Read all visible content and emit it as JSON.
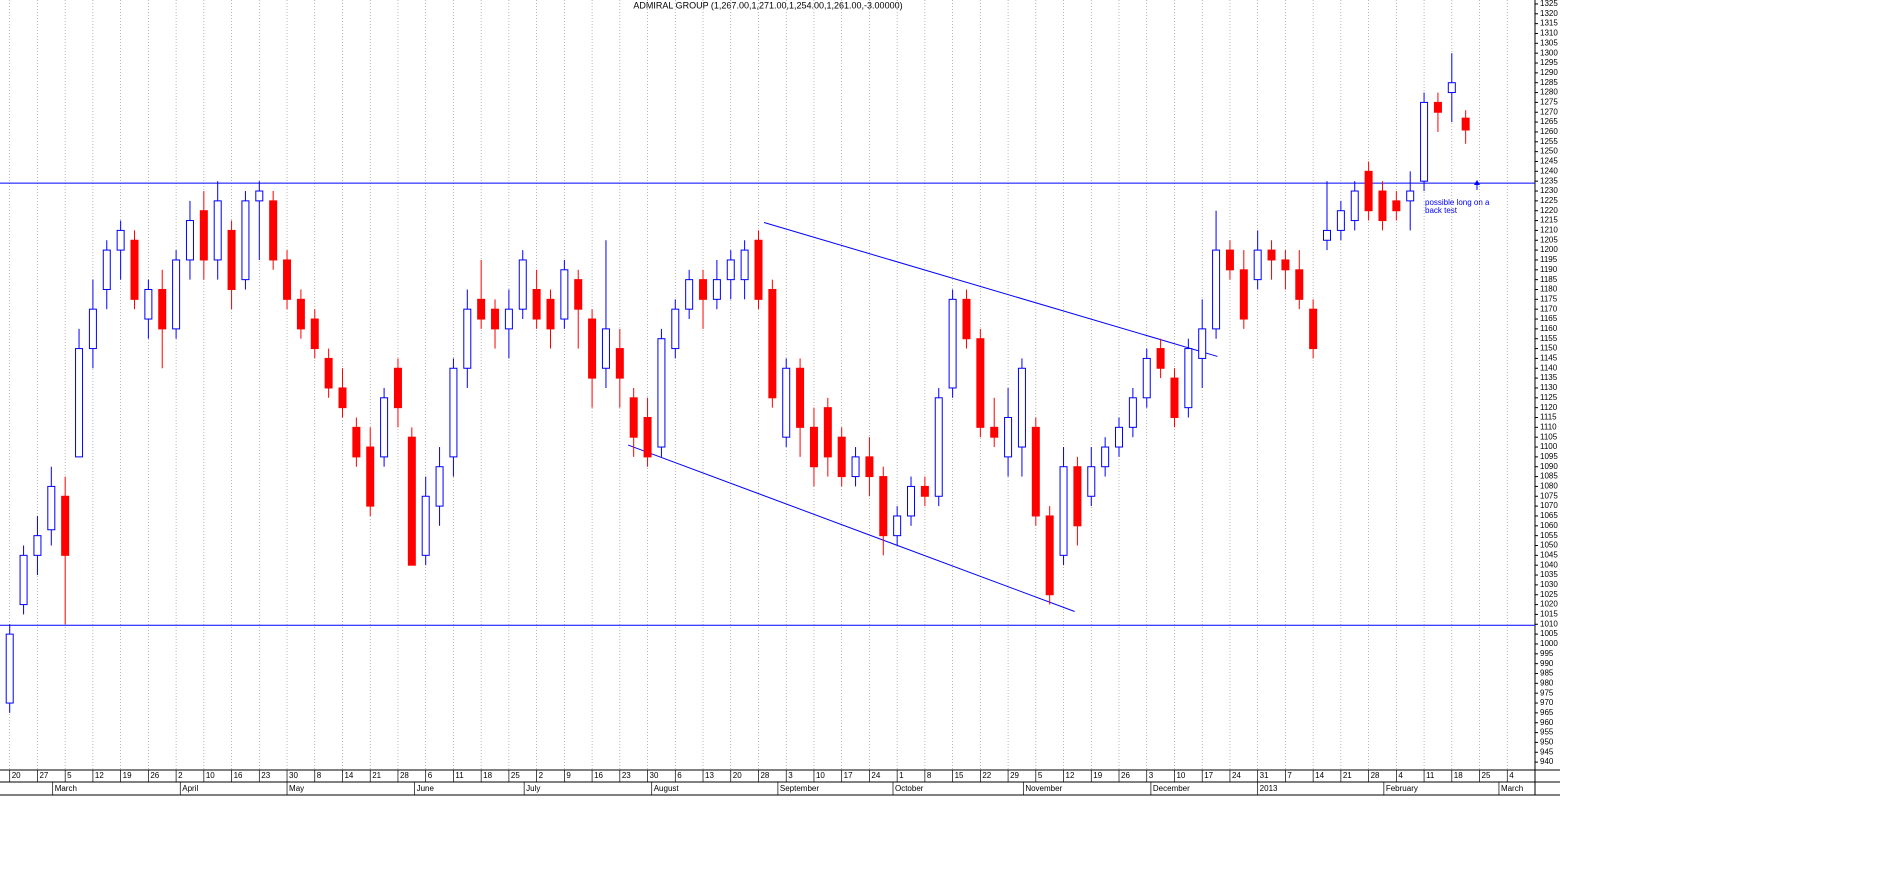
{
  "chart_data": {
    "type": "candlestick",
    "title": "ADMIRAL GROUP (1,267.00,1,271.00,1,254.00,1,261.00,-3.00000)",
    "up_color": "#0000ff",
    "down_color": "#ff0000",
    "line_color": "#0000ff",
    "open": [
      970,
      1020,
      1045,
      1058,
      1075,
      1095,
      1150,
      1180,
      1200,
      1205,
      1165,
      1180,
      1160,
      1195,
      1220,
      1195,
      1210,
      1185,
      1225,
      1225,
      1195,
      1175,
      1165,
      1145,
      1130,
      1110,
      1100,
      1095,
      1140,
      1105,
      1045,
      1070,
      1095,
      1140,
      1175,
      1170,
      1160,
      1170,
      1180,
      1175,
      1165,
      1185,
      1165,
      1140,
      1150,
      1125,
      1115,
      1100,
      1150,
      1170,
      1185,
      1175,
      1185,
      1185,
      1205,
      1180,
      1105,
      1140,
      1110,
      1120,
      1105,
      1085,
      1095,
      1085,
      1055,
      1065,
      1080,
      1075,
      1130,
      1175,
      1155,
      1110,
      1095,
      1100,
      1110,
      1065,
      1045,
      1090,
      1075,
      1090,
      1100,
      1110,
      1125,
      1150,
      1135,
      1120,
      1145,
      1160,
      1200,
      1190,
      1185,
      1200,
      1195,
      1190,
      1170,
      1205,
      1210,
      1215,
      1240,
      1230,
      1225,
      1225,
      1235,
      1275,
      1280,
      1267
    ],
    "high": [
      1010,
      1050,
      1065,
      1090,
      1085,
      1160,
      1185,
      1205,
      1215,
      1210,
      1185,
      1190,
      1200,
      1225,
      1230,
      1235,
      1215,
      1230,
      1235,
      1230,
      1200,
      1180,
      1170,
      1150,
      1140,
      1115,
      1110,
      1130,
      1145,
      1110,
      1085,
      1100,
      1145,
      1180,
      1195,
      1175,
      1180,
      1200,
      1190,
      1180,
      1195,
      1190,
      1170,
      1205,
      1160,
      1130,
      1125,
      1160,
      1175,
      1190,
      1190,
      1195,
      1200,
      1205,
      1210,
      1185,
      1145,
      1145,
      1120,
      1125,
      1110,
      1100,
      1105,
      1090,
      1070,
      1085,
      1085,
      1130,
      1180,
      1180,
      1160,
      1125,
      1130,
      1145,
      1115,
      1070,
      1100,
      1095,
      1100,
      1105,
      1115,
      1130,
      1150,
      1155,
      1140,
      1155,
      1175,
      1220,
      1205,
      1200,
      1210,
      1205,
      1200,
      1200,
      1175,
      1235,
      1225,
      1235,
      1245,
      1235,
      1230,
      1240,
      1280,
      1280,
      1300,
      1271
    ],
    "low": [
      965,
      1015,
      1035,
      1050,
      1010,
      1095,
      1140,
      1170,
      1185,
      1170,
      1155,
      1140,
      1155,
      1185,
      1185,
      1185,
      1170,
      1180,
      1195,
      1190,
      1170,
      1155,
      1145,
      1125,
      1115,
      1090,
      1065,
      1090,
      1110,
      1040,
      1040,
      1060,
      1085,
      1130,
      1160,
      1150,
      1145,
      1165,
      1160,
      1150,
      1160,
      1150,
      1120,
      1130,
      1120,
      1095,
      1090,
      1095,
      1145,
      1165,
      1160,
      1170,
      1175,
      1175,
      1170,
      1120,
      1100,
      1095,
      1080,
      1085,
      1080,
      1080,
      1075,
      1045,
      1050,
      1060,
      1070,
      1070,
      1125,
      1150,
      1105,
      1100,
      1085,
      1085,
      1060,
      1020,
      1040,
      1050,
      1070,
      1085,
      1095,
      1105,
      1120,
      1135,
      1110,
      1115,
      1130,
      1155,
      1185,
      1160,
      1180,
      1185,
      1180,
      1170,
      1145,
      1200,
      1205,
      1210,
      1215,
      1210,
      1215,
      1210,
      1230,
      1260,
      1265,
      1254
    ],
    "close": [
      1005,
      1045,
      1055,
      1080,
      1045,
      1150,
      1170,
      1200,
      1210,
      1175,
      1180,
      1160,
      1195,
      1215,
      1195,
      1225,
      1180,
      1225,
      1230,
      1195,
      1175,
      1160,
      1150,
      1130,
      1120,
      1095,
      1070,
      1125,
      1120,
      1040,
      1075,
      1090,
      1140,
      1170,
      1165,
      1160,
      1170,
      1195,
      1165,
      1160,
      1190,
      1170,
      1135,
      1160,
      1135,
      1105,
      1095,
      1155,
      1170,
      1185,
      1175,
      1185,
      1195,
      1200,
      1175,
      1125,
      1140,
      1110,
      1090,
      1095,
      1085,
      1095,
      1085,
      1055,
      1065,
      1080,
      1075,
      1125,
      1175,
      1155,
      1110,
      1105,
      1115,
      1140,
      1065,
      1025,
      1090,
      1060,
      1090,
      1100,
      1110,
      1125,
      1145,
      1140,
      1115,
      1150,
      1160,
      1200,
      1190,
      1165,
      1200,
      1195,
      1190,
      1175,
      1150,
      1210,
      1220,
      1230,
      1220,
      1215,
      1220,
      1230,
      1275,
      1270,
      1285,
      1261
    ],
    "ylim": [
      936,
      1327
    ],
    "yticks": [
      940,
      945,
      950,
      955,
      960,
      965,
      970,
      975,
      980,
      985,
      990,
      995,
      1000,
      1005,
      1010,
      1015,
      1020,
      1025,
      1030,
      1035,
      1040,
      1045,
      1050,
      1055,
      1060,
      1065,
      1070,
      1075,
      1080,
      1085,
      1090,
      1095,
      1100,
      1105,
      1110,
      1115,
      1120,
      1125,
      1130,
      1135,
      1140,
      1145,
      1150,
      1155,
      1160,
      1165,
      1170,
      1175,
      1180,
      1185,
      1190,
      1195,
      1200,
      1205,
      1210,
      1215,
      1220,
      1225,
      1230,
      1235,
      1240,
      1245,
      1250,
      1255,
      1260,
      1265,
      1270,
      1275,
      1280,
      1285,
      1290,
      1295,
      1300,
      1305,
      1310,
      1315,
      1320,
      1325
    ],
    "xlim": [
      -0.7,
      110
    ],
    "xticks": [
      {
        "value": 0,
        "label": "20"
      },
      {
        "value": 2,
        "label": "27"
      },
      {
        "value": 4,
        "label": "5"
      },
      {
        "value": 6,
        "label": "12"
      },
      {
        "value": 8,
        "label": "19"
      },
      {
        "value": 10,
        "label": "26"
      },
      {
        "value": 12,
        "label": "2"
      },
      {
        "value": 14,
        "label": "10"
      },
      {
        "value": 16,
        "label": "16"
      },
      {
        "value": 18,
        "label": "23"
      },
      {
        "value": 20,
        "label": "30"
      },
      {
        "value": 22,
        "label": "8"
      },
      {
        "value": 24,
        "label": "14"
      },
      {
        "value": 26,
        "label": "21"
      },
      {
        "value": 28,
        "label": "28"
      },
      {
        "value": 30,
        "label": "6"
      },
      {
        "value": 32,
        "label": "11"
      },
      {
        "value": 34,
        "label": "18"
      },
      {
        "value": 36,
        "label": "25"
      },
      {
        "value": 38,
        "label": "2"
      },
      {
        "value": 40,
        "label": "9"
      },
      {
        "value": 42,
        "label": "16"
      },
      {
        "value": 44,
        "label": "23"
      },
      {
        "value": 46,
        "label": "30"
      },
      {
        "value": 48,
        "label": "6"
      },
      {
        "value": 50,
        "label": "13"
      },
      {
        "value": 52,
        "label": "20"
      },
      {
        "value": 54,
        "label": "28"
      },
      {
        "value": 56,
        "label": "3"
      },
      {
        "value": 58,
        "label": "10"
      },
      {
        "value": 60,
        "label": "17"
      },
      {
        "value": 62,
        "label": "24"
      },
      {
        "value": 64,
        "label": "1"
      },
      {
        "value": 66,
        "label": "8"
      },
      {
        "value": 68,
        "label": "15"
      },
      {
        "value": 70,
        "label": "22"
      },
      {
        "value": 72,
        "label": "29"
      },
      {
        "value": 74,
        "label": "5"
      },
      {
        "value": 76,
        "label": "12"
      },
      {
        "value": 78,
        "label": "19"
      },
      {
        "value": 80,
        "label": "26"
      },
      {
        "value": 82,
        "label": "3"
      },
      {
        "value": 84,
        "label": "10"
      },
      {
        "value": 86,
        "label": "17"
      },
      {
        "value": 88,
        "label": "24"
      },
      {
        "value": 90,
        "label": "31"
      },
      {
        "value": 92,
        "label": "7"
      },
      {
        "value": 94,
        "label": "14"
      },
      {
        "value": 96,
        "label": "21"
      },
      {
        "value": 98,
        "label": "28"
      },
      {
        "value": 100,
        "label": "4"
      },
      {
        "value": 102,
        "label": "11"
      },
      {
        "value": 104,
        "label": "18"
      },
      {
        "value": 106,
        "label": "25"
      },
      {
        "value": 108,
        "label": "4"
      }
    ],
    "month_ticks": [
      {
        "value": 3.1,
        "label": "March"
      },
      {
        "value": 12.3,
        "label": "April"
      },
      {
        "value": 20.0,
        "label": "May"
      },
      {
        "value": 29.2,
        "label": "June"
      },
      {
        "value": 37.1,
        "label": "July"
      },
      {
        "value": 46.3,
        "label": "August"
      },
      {
        "value": 55.4,
        "label": "September"
      },
      {
        "value": 63.7,
        "label": "October"
      },
      {
        "value": 73.1,
        "label": "November"
      },
      {
        "value": 82.3,
        "label": "December"
      },
      {
        "value": 90.0,
        "label": "2013"
      },
      {
        "value": 99.1,
        "label": "February"
      },
      {
        "value": 107.4,
        "label": "March"
      }
    ],
    "reference_lines": [
      1234,
      1009.5
    ],
    "trend_lines": [
      {
        "x": [
          54.4,
          87.1
        ],
        "y": [
          1214,
          1146
        ]
      },
      {
        "x": [
          44.6,
          76.8
        ],
        "y": [
          1101,
          1016.5
        ]
      }
    ],
    "annotation_lines": [
      "possible long on a",
      "back test"
    ]
  }
}
